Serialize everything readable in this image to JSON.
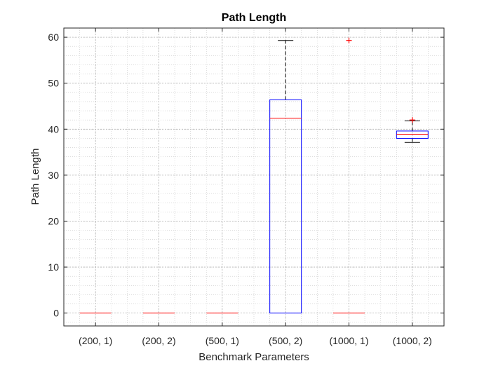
{
  "chart_data": {
    "type": "boxplot",
    "title": "Path Length",
    "xlabel": "Benchmark Parameters",
    "ylabel": "Path Length",
    "categories": [
      "(200, 1)",
      "(200, 2)",
      "(500, 1)",
      "(500, 2)",
      "(1000, 1)",
      "(1000, 2)"
    ],
    "ylim": [
      -2.8,
      62
    ],
    "yticks": [
      0,
      10,
      20,
      30,
      40,
      50,
      60
    ],
    "grid": "on (major and minor, dotted)",
    "boxes": [
      {
        "category": "(200, 1)",
        "min": 0,
        "q1": 0,
        "median": 0,
        "q3": 0,
        "max": 0,
        "outliers": []
      },
      {
        "category": "(200, 2)",
        "min": 0,
        "q1": 0,
        "median": 0,
        "q3": 0,
        "max": 0,
        "outliers": []
      },
      {
        "category": "(500, 1)",
        "min": 0,
        "q1": 0,
        "median": 0,
        "q3": 0,
        "max": 0,
        "outliers": []
      },
      {
        "category": "(500, 2)",
        "min": 0,
        "q1": 0,
        "median": 42.4,
        "q3": 46.4,
        "max": 59.3,
        "outliers": []
      },
      {
        "category": "(1000, 1)",
        "min": 0,
        "q1": 0,
        "median": 0,
        "q3": 0,
        "max": 0,
        "outliers": [
          59.3
        ]
      },
      {
        "category": "(1000, 2)",
        "min": 37.1,
        "q1": 38.0,
        "median": 38.9,
        "q3": 39.6,
        "max": 41.8,
        "outliers": [
          42.0
        ]
      }
    ],
    "colors": {
      "box": "#0000ff",
      "median": "#ff0000",
      "whisker": "#000000",
      "outlier": "#ff0000",
      "grid": "#c8c8c8",
      "axis": "#262626"
    }
  }
}
